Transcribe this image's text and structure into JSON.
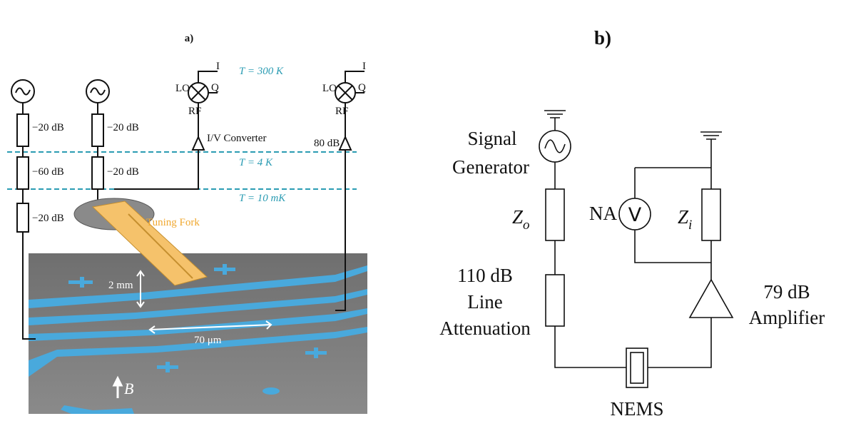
{
  "panel_a": {
    "label": "a)",
    "temperatures": [
      "T = 300 K",
      "T = 4 K",
      "T = 10 mK"
    ],
    "attenuators_left": [
      "−20 dB",
      "−60 dB",
      "−20 dB"
    ],
    "attenuators_middle": [
      "−20 dB",
      "−20 dB"
    ],
    "mixers": [
      {
        "lo": "LO",
        "i": "I",
        "q": "Q",
        "rf": "RF"
      },
      {
        "lo": "LO",
        "i": "I",
        "q": "Q",
        "rf": "RF"
      }
    ],
    "converter": "I/V Converter",
    "amplifier": "80 dB",
    "tuning_fork": "Tuning Fork",
    "scale_height": "2 mm",
    "scale_width": "70 μm",
    "field": "B"
  },
  "panel_b": {
    "label": "b)",
    "generator": [
      "Signal",
      "Generator"
    ],
    "source_impedance": {
      "symbol": "Z",
      "subscript": "o"
    },
    "attenuation": [
      "110 dB",
      "Line",
      "Attenuation"
    ],
    "analyzer": "NA",
    "meter": "V",
    "input_impedance": {
      "symbol": "Z",
      "subscript": "i"
    },
    "amplifier": [
      "79 dB",
      "Amplifier"
    ],
    "device": "NEMS"
  }
}
